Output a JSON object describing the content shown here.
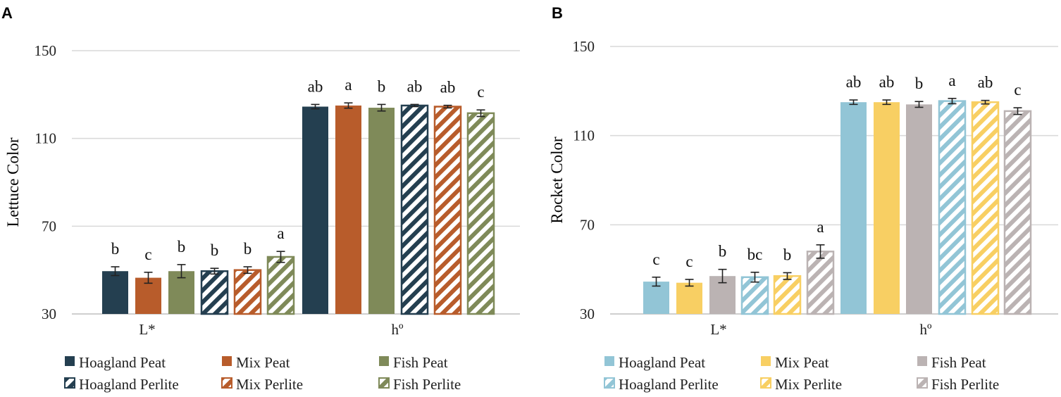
{
  "chart_data": [
    {
      "panel": "A",
      "type": "bar",
      "ylabel": "Lettuce Color",
      "xlabel": "",
      "ylim": [
        30,
        150
      ],
      "yticks": [
        30,
        70,
        110,
        150
      ],
      "grid": true,
      "legend_position": "bottom",
      "categories": [
        "L*",
        "hº"
      ],
      "series": [
        {
          "name": "Hoagland Peat",
          "color": "#243f50",
          "pattern": "solid",
          "values": [
            49.5,
            124.5
          ],
          "errors": [
            2.0,
            1.0
          ],
          "letters": [
            "b",
            "ab"
          ]
        },
        {
          "name": "Mix Peat",
          "color": "#b85c2b",
          "pattern": "solid",
          "values": [
            46.5,
            125.0
          ],
          "errors": [
            2.5,
            1.2
          ],
          "letters": [
            "c",
            "a"
          ]
        },
        {
          "name": "Fish Peat",
          "color": "#7f8a59",
          "pattern": "solid",
          "values": [
            49.5,
            124.0
          ],
          "errors": [
            3.0,
            1.5
          ],
          "letters": [
            "b",
            "b"
          ]
        },
        {
          "name": "Hoagland Perlite",
          "color": "#243f50",
          "pattern": "striped",
          "values": [
            49.5,
            125.0
          ],
          "errors": [
            1.3,
            0.5
          ],
          "letters": [
            "b",
            "ab"
          ]
        },
        {
          "name": "Mix Perlite",
          "color": "#b85c2b",
          "pattern": "striped",
          "values": [
            50.0,
            124.5
          ],
          "errors": [
            1.5,
            0.6
          ],
          "letters": [
            "b",
            "ab"
          ]
        },
        {
          "name": "Fish Perlite",
          "color": "#7f8a59",
          "pattern": "striped",
          "values": [
            56.0,
            121.5
          ],
          "errors": [
            2.5,
            1.5
          ],
          "letters": [
            "a",
            "c"
          ]
        }
      ]
    },
    {
      "panel": "B",
      "type": "bar",
      "ylabel": "Rocket Color",
      "xlabel": "",
      "ylim": [
        30,
        150
      ],
      "yticks": [
        30,
        70,
        110,
        150
      ],
      "grid": true,
      "legend_position": "bottom",
      "categories": [
        "L*",
        "hº"
      ],
      "series": [
        {
          "name": "Hoagland Peat",
          "color": "#92c5d6",
          "pattern": "solid",
          "values": [
            44.5,
            125.0
          ],
          "errors": [
            2.0,
            1.0
          ],
          "letters": [
            "c",
            "ab"
          ]
        },
        {
          "name": "Mix Peat",
          "color": "#f8cf63",
          "pattern": "solid",
          "values": [
            44.0,
            125.0
          ],
          "errors": [
            1.5,
            1.0
          ],
          "letters": [
            "c",
            "ab"
          ]
        },
        {
          "name": "Fish Peat",
          "color": "#bbb3b3",
          "pattern": "solid",
          "values": [
            47.0,
            124.0
          ],
          "errors": [
            3.0,
            1.3
          ],
          "letters": [
            "b",
            "b"
          ]
        },
        {
          "name": "Hoagland Perlite",
          "color": "#92c5d6",
          "pattern": "striped",
          "values": [
            46.5,
            125.5
          ],
          "errors": [
            2.2,
            1.2
          ],
          "letters": [
            "bc",
            "a"
          ]
        },
        {
          "name": "Mix Perlite",
          "color": "#f8cf63",
          "pattern": "striped",
          "values": [
            47.0,
            125.0
          ],
          "errors": [
            1.5,
            0.8
          ],
          "letters": [
            "b",
            "ab"
          ]
        },
        {
          "name": "Fish Perlite",
          "color": "#bbb3b3",
          "pattern": "striped",
          "values": [
            58.0,
            121.0
          ],
          "errors": [
            3.0,
            1.5
          ],
          "letters": [
            "a",
            "c"
          ]
        }
      ]
    }
  ]
}
